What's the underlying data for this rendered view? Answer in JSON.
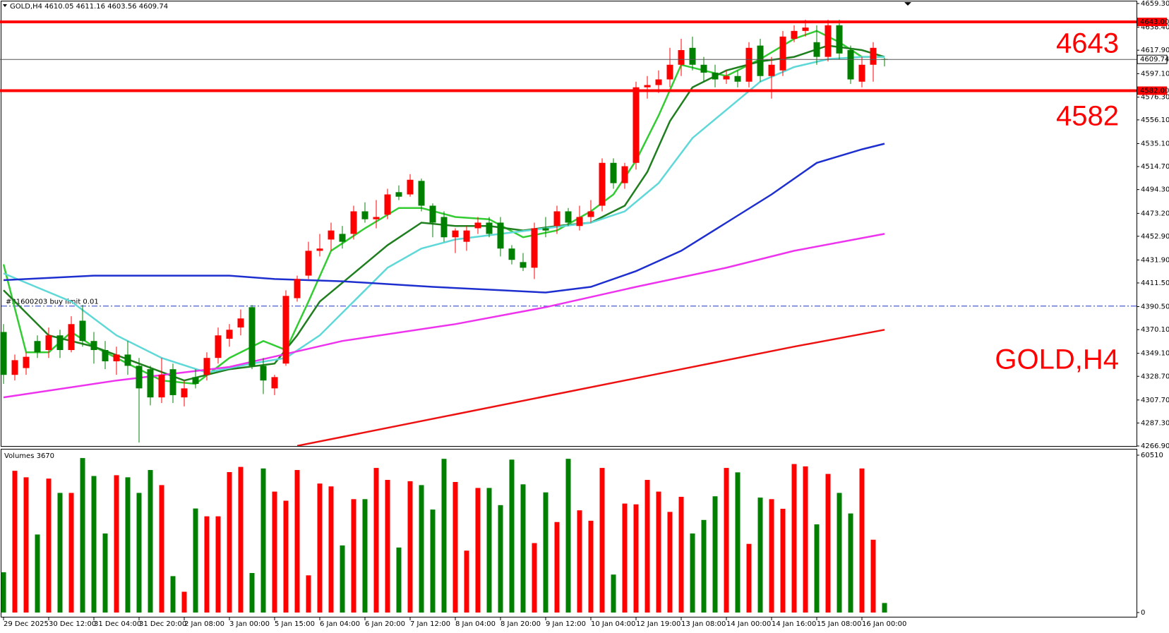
{
  "chart_data": {
    "type": "candlestick",
    "header": "GOLD,H4  4610.05 4611.16 4603.56 4609.74",
    "volume_title": "Volumes 3670",
    "watermark": "GOLD,H4",
    "up_color": "#ff0000",
    "down_color": "#008000",
    "categories": [
      "29 Dec 2025",
      null,
      null,
      null,
      "30 Dec 12:00",
      null,
      null,
      null,
      "31 Dec 04:00",
      null,
      null,
      null,
      "31 Dec 20:00",
      null,
      null,
      null,
      "2 Jan 08:00",
      null,
      null,
      null,
      "3 Jan 00:00",
      null,
      null,
      null,
      "5 Jan 15:00",
      null,
      null,
      null,
      "6 Jan 04:00",
      null,
      null,
      null,
      "6 Jan 20:00",
      null,
      null,
      null,
      "7 Jan 12:00",
      null,
      null,
      null,
      "8 Jan 04:00",
      null,
      null,
      null,
      "8 Jan 20:00",
      null,
      null,
      null,
      "9 Jan 12:00",
      null,
      null,
      null,
      "10 Jan 04:00",
      null,
      null,
      null,
      "12 Jan 19:00",
      null,
      null,
      null,
      "13 Jan 08:00",
      null,
      null,
      null,
      "14 Jan 00:00",
      null,
      null,
      null,
      "14 Jan 16:00",
      null,
      null,
      null,
      "15 Jan 08:00",
      null,
      null,
      null,
      "16 Jan 00:00",
      null,
      null
    ],
    "open": [
      4368,
      4330,
      4336,
      4360,
      4352,
      4365,
      4352,
      4378,
      4360,
      4352,
      4342,
      4348,
      4338,
      4335,
      4310,
      4335,
      4310,
      4328,
      4330,
      4345,
      4362,
      4372,
      4390,
      4338,
      4318,
      4340,
      4398,
      4418,
      4440,
      4450,
      4455,
      4455,
      4475,
      4468,
      4472,
      4492,
      4490,
      4502,
      4480,
      4470,
      4452,
      4448,
      4460,
      4465,
      4465,
      4442,
      4430,
      4425,
      4460,
      4462,
      4475,
      4462,
      4470,
      4480,
      4518,
      4500,
      4518,
      4585,
      4587,
      4592,
      4605,
      4620,
      4605,
      4598,
      4592,
      4595,
      4590,
      4622,
      4595,
      4600,
      4628,
      4635,
      4625,
      4612,
      4640,
      4618,
      4590,
      4605,
      4610.05
    ],
    "high": [
      4375,
      4348,
      4350,
      4365,
      4372,
      4370,
      4382,
      4392,
      4368,
      4360,
      4355,
      4360,
      4345,
      4338,
      4345,
      4340,
      4325,
      4335,
      4350,
      4372,
      4375,
      4388,
      4392,
      4345,
      4330,
      4405,
      4418,
      4448,
      4455,
      4465,
      4462,
      4480,
      4483,
      4485,
      4495,
      4498,
      4508,
      4504,
      4482,
      4475,
      4460,
      4462,
      4470,
      4470,
      4470,
      4445,
      4438,
      4465,
      4470,
      4480,
      4478,
      4480,
      4485,
      4522,
      4522,
      4518,
      4590,
      4595,
      4600,
      4620,
      4628,
      4630,
      4612,
      4605,
      4600,
      4600,
      4625,
      4628,
      4612,
      4635,
      4640,
      4645,
      4640,
      4645,
      4645,
      4622,
      4612,
      4625,
      4611.16
    ],
    "low": [
      4322,
      4325,
      4330,
      4345,
      4345,
      4345,
      4350,
      4355,
      4340,
      4335,
      4330,
      4330,
      4270,
      4303,
      4305,
      4305,
      4302,
      4318,
      4325,
      4340,
      4355,
      4365,
      4335,
      4313,
      4312,
      4338,
      4395,
      4415,
      4435,
      4440,
      4442,
      4450,
      4465,
      4460,
      4468,
      4485,
      4488,
      4475,
      4452,
      4448,
      4438,
      4440,
      4455,
      4452,
      4435,
      4428,
      4422,
      4415,
      4452,
      4455,
      4462,
      4458,
      4465,
      4475,
      4495,
      4495,
      4512,
      4575,
      4580,
      4585,
      4595,
      4600,
      4590,
      4585,
      4588,
      4585,
      4585,
      4590,
      4575,
      4595,
      4625,
      4630,
      4605,
      4608,
      4610,
      4588,
      4585,
      4590,
      4603.56
    ],
    "close": [
      4330,
      4343,
      4346,
      4350,
      4365,
      4352,
      4375,
      4360,
      4352,
      4342,
      4348,
      4338,
      4318,
      4310,
      4330,
      4312,
      4318,
      4322,
      4345,
      4365,
      4370,
      4380,
      4338,
      4325,
      4328,
      4400,
      4415,
      4440,
      4442,
      4458,
      4448,
      4475,
      4468,
      4470,
      4490,
      4488,
      4503,
      4480,
      4465,
      4452,
      4458,
      4458,
      4465,
      4455,
      4442,
      4432,
      4425,
      4460,
      4458,
      4475,
      4465,
      4470,
      4475,
      4518,
      4500,
      4515,
      4585,
      4587,
      4592,
      4605,
      4618,
      4605,
      4598,
      4592,
      4595,
      4590,
      4620,
      4595,
      4605,
      4630,
      4635,
      4638,
      4612,
      4640,
      4615,
      4592,
      4605,
      4620,
      4609.74
    ],
    "volumes": [
      15500,
      54500,
      52000,
      30000,
      51500,
      46000,
      46000,
      59400,
      52500,
      30400,
      52800,
      52000,
      46000,
      54800,
      49000,
      14000,
      8000,
      40000,
      37000,
      37000,
      54000,
      56000,
      15200,
      55400,
      46500,
      43000,
      54800,
      14300,
      49600,
      48500,
      25800,
      43600,
      43600,
      55600,
      51000,
      25000,
      50500,
      49000,
      39600,
      59100,
      50200,
      23800,
      47900,
      47900,
      41300,
      58800,
      49300,
      26700,
      46200,
      34800,
      59100,
      39300,
      35300,
      55600,
      14600,
      41900,
      41600,
      51000,
      46500,
      38700,
      44500,
      30400,
      35600,
      44700,
      55600,
      53900,
      26400,
      44200,
      43600,
      39900,
      57100,
      56200,
      33900,
      53300,
      46000,
      38100,
      55400,
      28000,
      3670
    ],
    "vlim": [
      0,
      60510
    ],
    "vticks": [
      60510,
      0
    ],
    "ylim": [
      4266.9,
      4659.3
    ],
    "yticks": [
      {
        "value": 4659.3,
        "label": "4659.30"
      },
      {
        "value": 4638.4,
        "label": "4638.40"
      },
      {
        "value": 4617.9,
        "label": "4617.90"
      },
      {
        "value": 4597.1,
        "label": "4597.10"
      },
      {
        "value": 4576.3,
        "label": "4576.30"
      },
      {
        "value": 4556.1,
        "label": "4556.10"
      },
      {
        "value": 4535.1,
        "label": "4535.10"
      },
      {
        "value": 4514.7,
        "label": "4514.70"
      },
      {
        "value": 4494.3,
        "label": "4494.30"
      },
      {
        "value": 4473.2,
        "label": "4473.20"
      },
      {
        "value": 4452.9,
        "label": "4452.90"
      },
      {
        "value": 4431.9,
        "label": "4431.90"
      },
      {
        "value": 4411.5,
        "label": "4411.50"
      },
      {
        "value": 4390.5,
        "label": "4390.50"
      },
      {
        "value": 4370.1,
        "label": "4370.10"
      },
      {
        "value": 4349.1,
        "label": "4349.10"
      },
      {
        "value": 4328.7,
        "label": "4328.70"
      },
      {
        "value": 4307.7,
        "label": "4307.70"
      },
      {
        "value": 4287.3,
        "label": "4287.30"
      },
      {
        "value": 4266.9,
        "label": "4266.90"
      }
    ],
    "moving_averages": [
      {
        "color": "#33cc33",
        "x": [
          0,
          2,
          4,
          6,
          8,
          11,
          14,
          17,
          20,
          23,
          25,
          27,
          29,
          32,
          35,
          37,
          40,
          43,
          46,
          49,
          52,
          54,
          56,
          58,
          60,
          62,
          64,
          67,
          70,
          72,
          74,
          76,
          78
        ],
        "values": [
          4428,
          4350,
          4350,
          4368,
          4355,
          4340,
          4325,
          4322,
          4345,
          4360,
          4352,
          4395,
          4440,
          4460,
          4478,
          4478,
          4470,
          4468,
          4452,
          4458,
          4475,
          4490,
          4520,
          4560,
          4605,
          4600,
          4595,
          4610,
          4628,
          4635,
          4625,
          4612,
          4612
        ]
      },
      {
        "color": "#1f7f1f",
        "x": [
          0,
          4,
          8,
          12,
          16,
          20,
          24,
          26,
          28,
          31,
          34,
          37,
          40,
          43,
          46,
          49,
          52,
          55,
          57,
          59,
          61,
          64,
          67,
          70,
          73,
          76,
          78
        ],
        "values": [
          4405,
          4365,
          4355,
          4340,
          4325,
          4335,
          4340,
          4365,
          4395,
          4420,
          4445,
          4465,
          4462,
          4462,
          4458,
          4462,
          4465,
          4480,
          4510,
          4555,
          4585,
          4600,
          4608,
          4612,
          4622,
          4618,
          4612
        ]
      },
      {
        "color": "#5fd8d8",
        "x": [
          0,
          6,
          10,
          14,
          18,
          22,
          25,
          28,
          31,
          34,
          37,
          40,
          44,
          48,
          52,
          55,
          58,
          61,
          64,
          67,
          70,
          73,
          76,
          78
        ],
        "values": [
          4420,
          4395,
          4365,
          4345,
          4332,
          4340,
          4345,
          4365,
          4395,
          4425,
          4442,
          4450,
          4455,
          4460,
          4465,
          4475,
          4500,
          4540,
          4565,
          4590,
          4603,
          4610,
          4612,
          4612
        ]
      },
      {
        "color": "#1e2fcf",
        "x": [
          0,
          8,
          16,
          20,
          24,
          30,
          38,
          44,
          48,
          52,
          56,
          60,
          64,
          68,
          72,
          76,
          78
        ],
        "values": [
          4414,
          4418,
          4418,
          4418,
          4415,
          4413,
          4408,
          4405,
          4403,
          4408,
          4422,
          4440,
          4465,
          4490,
          4518,
          4530,
          4535
        ]
      },
      {
        "color": "#ee33ee",
        "x": [
          0,
          10,
          20,
          30,
          40,
          48,
          56,
          64,
          70,
          78
        ],
        "values": [
          4310,
          4325,
          4337,
          4360,
          4375,
          4390,
          4408,
          4425,
          4440,
          4455
        ]
      },
      {
        "color": "#ee1111",
        "x": [
          26,
          30,
          40,
          50,
          60,
          70,
          78
        ],
        "values": [
          4267,
          4275,
          4295,
          4315,
          4335,
          4355,
          4370
        ]
      }
    ],
    "levels": [
      {
        "value": 4643,
        "label": "4643.00"
      },
      {
        "value": 4582,
        "label": "4582.00"
      }
    ],
    "current_price": 4609.74,
    "order_line": {
      "value": 4391,
      "label": "#31600203 buy limit 0.01"
    }
  }
}
